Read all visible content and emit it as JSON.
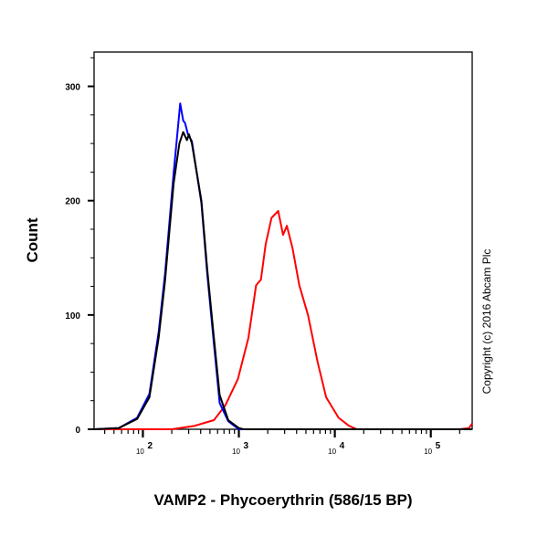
{
  "chart_data": {
    "type": "line",
    "title": "",
    "xlabel": "VAMP2 - Phycoerythrin (586/15 BP)",
    "ylabel": "Count",
    "x_scale": "log",
    "xlim": [
      31,
      270000
    ],
    "ylim": [
      0,
      330
    ],
    "x_ticks": [
      {
        "base": "10",
        "exp": "2",
        "value": 100
      },
      {
        "base": "10",
        "exp": "3",
        "value": 1000
      },
      {
        "base": "10",
        "exp": "4",
        "value": 10000
      },
      {
        "base": "10",
        "exp": "5",
        "value": 100000
      }
    ],
    "y_ticks": [
      {
        "label": "0",
        "value": 0
      },
      {
        "label": "100",
        "value": 100
      },
      {
        "label": "200",
        "value": 200
      },
      {
        "label": "300",
        "value": 300
      }
    ],
    "grid": false,
    "annotation": "Copyright (c) 2016 Abcam Plc",
    "series": [
      {
        "color": "#0000ff",
        "x": [
          31,
          56,
          87,
          117,
          146,
          170,
          209,
          245,
          263,
          275,
          295,
          324,
          407,
          468,
          550,
          631,
          776,
          1000,
          1122,
          270000
        ],
        "y": [
          0,
          1,
          10,
          31,
          85,
          136,
          224,
          285,
          270,
          268,
          258,
          252,
          198,
          136,
          75,
          23,
          7,
          0,
          0,
          0
        ]
      },
      {
        "color": "#000000",
        "x": [
          31,
          56,
          87,
          117,
          146,
          170,
          209,
          240,
          263,
          288,
          302,
          324,
          407,
          468,
          550,
          631,
          776,
          1000,
          1122,
          270000
        ],
        "y": [
          0,
          1,
          9,
          28,
          80,
          130,
          215,
          250,
          260,
          253,
          258,
          250,
          200,
          140,
          80,
          30,
          8,
          1,
          0,
          0
        ]
      },
      {
        "color": "#ff0000",
        "x": [
          31,
          200,
          347,
          550,
          724,
          977,
          1259,
          1514,
          1698,
          1905,
          2188,
          2570,
          2884,
          3162,
          3631,
          4266,
          5248,
          6607,
          8128,
          10965,
          14000,
          16982,
          200000,
          250000,
          270000
        ],
        "y": [
          0,
          0,
          3,
          8,
          21,
          44,
          80,
          126,
          131,
          162,
          185,
          191,
          170,
          178,
          158,
          126,
          100,
          59,
          28,
          10,
          3,
          0,
          0,
          1,
          5
        ]
      }
    ]
  }
}
